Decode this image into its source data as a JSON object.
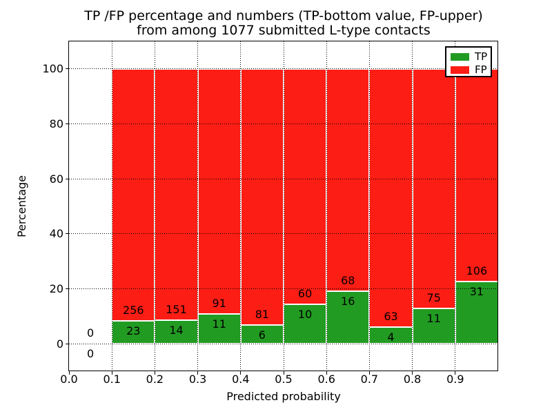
{
  "chart_data": {
    "type": "bar",
    "stacked": true,
    "title_lines": [
      "TP /FP percentage and numbers (TP-bottom value, FP-upper)",
      "from among 1077 submitted L-type contacts"
    ],
    "xlabel": "Predicted probability",
    "ylabel": "Percentage",
    "xlim": [
      0.0,
      1.0
    ],
    "ylim": [
      -10,
      110
    ],
    "xticks": [
      0.0,
      0.1,
      0.2,
      0.3,
      0.4,
      0.5,
      0.6,
      0.7,
      0.8,
      0.9
    ],
    "xtick_labels": [
      "0.0",
      "0.1",
      "0.2",
      "0.3",
      "0.4",
      "0.5",
      "0.6",
      "0.7",
      "0.8",
      "0.9"
    ],
    "yticks": [
      0,
      20,
      40,
      60,
      80,
      100
    ],
    "ytick_labels": [
      "0",
      "20",
      "40",
      "60",
      "80",
      "100"
    ],
    "grid": {
      "style": "dotted",
      "color": "#000000",
      "drawn_over_bars": true
    },
    "bar_total_percent": 100,
    "colors": {
      "tp": "#229b22",
      "fp": "#fc1d14",
      "bar_edge": "#ffffff"
    },
    "legend": {
      "position": "upper-right",
      "entries": [
        {
          "label": "TP",
          "color": "#229b22"
        },
        {
          "label": "FP",
          "color": "#fc1d14"
        }
      ]
    },
    "bins": [
      {
        "range": [
          0.0,
          0.1
        ],
        "tp": 0,
        "fp": 0
      },
      {
        "range": [
          0.1,
          0.2
        ],
        "tp": 23,
        "fp": 256
      },
      {
        "range": [
          0.2,
          0.3
        ],
        "tp": 14,
        "fp": 151
      },
      {
        "range": [
          0.3,
          0.4
        ],
        "tp": 11,
        "fp": 91
      },
      {
        "range": [
          0.4,
          0.5
        ],
        "tp": 6,
        "fp": 81
      },
      {
        "range": [
          0.5,
          0.6
        ],
        "tp": 10,
        "fp": 60
      },
      {
        "range": [
          0.6,
          0.7
        ],
        "tp": 16,
        "fp": 68
      },
      {
        "range": [
          0.7,
          0.8
        ],
        "tp": 4,
        "fp": 63
      },
      {
        "range": [
          0.8,
          0.9
        ],
        "tp": 11,
        "fp": 75
      },
      {
        "range": [
          0.9,
          1.0
        ],
        "tp": 31,
        "fp": 106
      }
    ]
  }
}
